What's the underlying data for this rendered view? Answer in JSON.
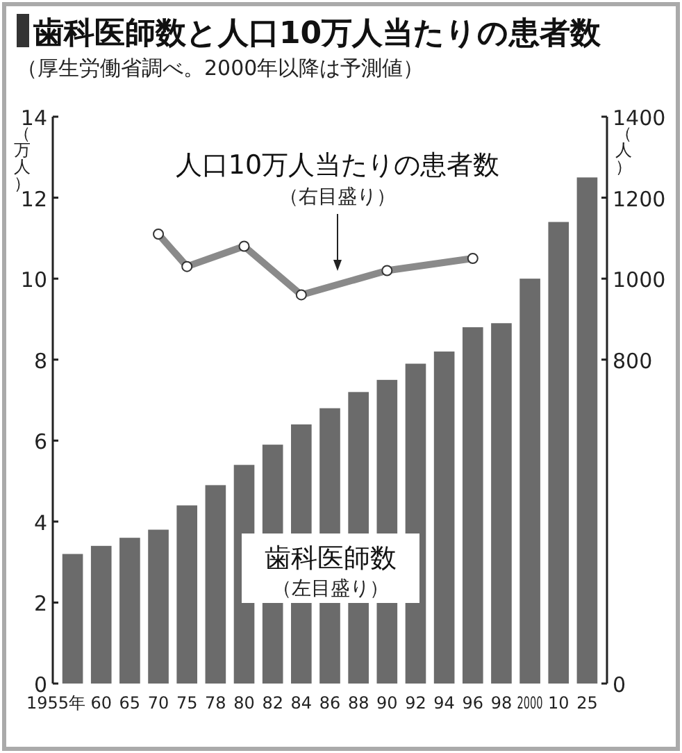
{
  "chart_data": {
    "type": "bar",
    "title": "歯科医師数と人口10万人当たりの患者数",
    "subtitle": "（厚生労働省調べ。2000年以降は予測値）",
    "categories": [
      "1955年",
      "60",
      "65",
      "70",
      "75",
      "78",
      "80",
      "82",
      "84",
      "86",
      "88",
      "90",
      "92",
      "94",
      "96",
      "98",
      "2000",
      "10",
      "25"
    ],
    "series": [
      {
        "name": "歯科医師数",
        "type": "bar",
        "color": "#6b6b6b",
        "values": [
          3.2,
          3.4,
          3.6,
          3.8,
          4.4,
          4.9,
          5.4,
          5.9,
          6.4,
          6.8,
          7.2,
          7.5,
          7.9,
          8.2,
          8.8,
          8.9,
          10.0,
          11.4,
          12.5
        ]
      },
      {
        "name": "人口10万人当たりの患者数",
        "type": "line",
        "axis": "y2",
        "marker": "circle",
        "color": "#8a8a8a",
        "values": [
          null,
          null,
          null,
          1110,
          1030,
          null,
          1080,
          null,
          960,
          null,
          null,
          1020,
          null,
          null,
          1050,
          null,
          null,
          null,
          null
        ]
      }
    ],
    "ylabel": "（万人）",
    "y2label": "（人）",
    "ylim": [
      0,
      14
    ],
    "yticks": [
      0,
      2,
      4,
      6,
      8,
      10,
      12,
      14
    ],
    "y2lim": [
      0,
      1400
    ],
    "y2ticks": [
      0,
      800,
      1000,
      1200,
      1400
    ],
    "annotations": [
      "（左目盛り）",
      "（右目盛り）"
    ]
  }
}
